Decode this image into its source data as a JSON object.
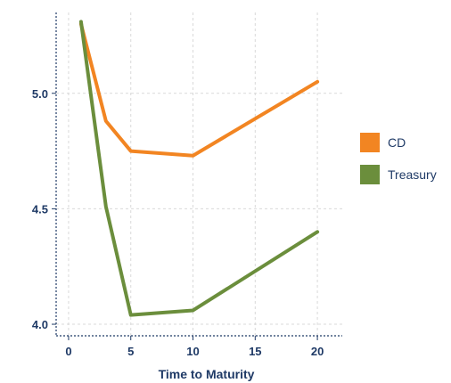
{
  "chart_data": {
    "type": "line",
    "title": "",
    "xlabel": "Time to Maturity",
    "ylabel": "",
    "xlim": [
      -1,
      22
    ],
    "ylim": [
      3.95,
      5.35
    ],
    "xticks": [
      0,
      5,
      10,
      15,
      20
    ],
    "xtick_labels": [
      "0",
      "5",
      "10",
      "15",
      "20"
    ],
    "yticks": [
      4.0,
      4.5,
      5.0
    ],
    "ytick_labels": [
      "4.0",
      "4.5",
      "5.0"
    ],
    "grid": true,
    "legend_position": "right",
    "x": [
      1,
      3,
      5,
      10,
      20
    ],
    "series": [
      {
        "name": "CD",
        "color": "#f28522",
        "values": [
          5.3,
          4.88,
          4.75,
          4.73,
          5.05
        ]
      },
      {
        "name": "Treasury",
        "color": "#6b8e3c",
        "values": [
          5.31,
          4.51,
          4.04,
          4.06,
          4.4
        ]
      }
    ],
    "axis_color": "#1f3a66",
    "grid_color": "#d9d9d9"
  }
}
